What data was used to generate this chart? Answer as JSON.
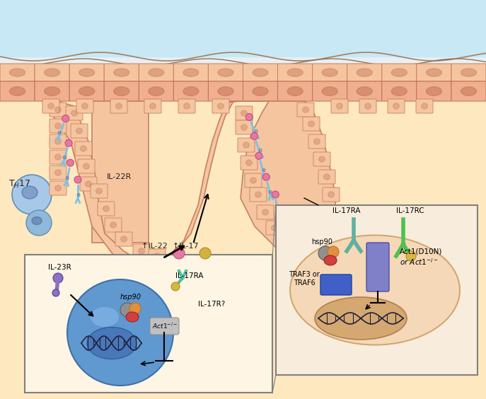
{
  "bg_color": "#e8f4f8",
  "skin_top_color": "#87ceeb",
  "skin_layer1_color": "#f5c5a0",
  "skin_layer2_color": "#f0b090",
  "skin_outline_color": "#c8855a",
  "skin_cell_oval_color": "#d4956a",
  "dermis_color": "#fde8c8",
  "dermis_outline_color": "#e8c080",
  "th17_cell_color": "#6fa8d8",
  "th17_nucleus_color": "#5090c8",
  "blue_cell_color": "#5590d0",
  "blue_cell_nucleus_color": "#4478b8",
  "receptor_color": "#7070c0",
  "receptor_handle_color": "#8878b0",
  "il22r_color": "#70b0e0",
  "cytokine_pink_color": "#e878a0",
  "cytokine_yellow_color": "#d0b840",
  "box1_bg": "#f5e8d0",
  "box1_border": "#808080",
  "box2_bg": "#f8ecd8",
  "box2_border": "#808080",
  "act1_rect_color": "#8080d0",
  "traf_rect_color": "#4060c0",
  "hsp90_color1": "#808080",
  "hsp90_color2": "#e08840",
  "hsp90_color3": "#d04040",
  "dna_color": "#404040",
  "nucleus_color1": "#d4a070",
  "nucleus_color2": "#c89060",
  "il17ra_color1": "#50c0a0",
  "il17ra_color2": "#40a880",
  "il17rc_color": "#40c040",
  "arrow_color": "#202020",
  "text_color": "#202020",
  "labels": {
    "th17": "T$_H$17",
    "il22r": "IL-22R",
    "il22": "↑IL-22",
    "il17": "↑IL-17",
    "il23r": "IL-23R",
    "hsp90_left": "hsp90",
    "il17ra_left": "IL-17RA",
    "il17r_q": "IL-17R?",
    "act1_left": "Act1$^{-/-}$",
    "il17ra_right": "IL-17RA",
    "il17rc": "IL-17RC",
    "hsp90_right": "hsp90",
    "traf36": "TRAF3 or\nTRAF6",
    "act1_right": "Act1(D10N)\nor Act1$^{-/-}$"
  }
}
